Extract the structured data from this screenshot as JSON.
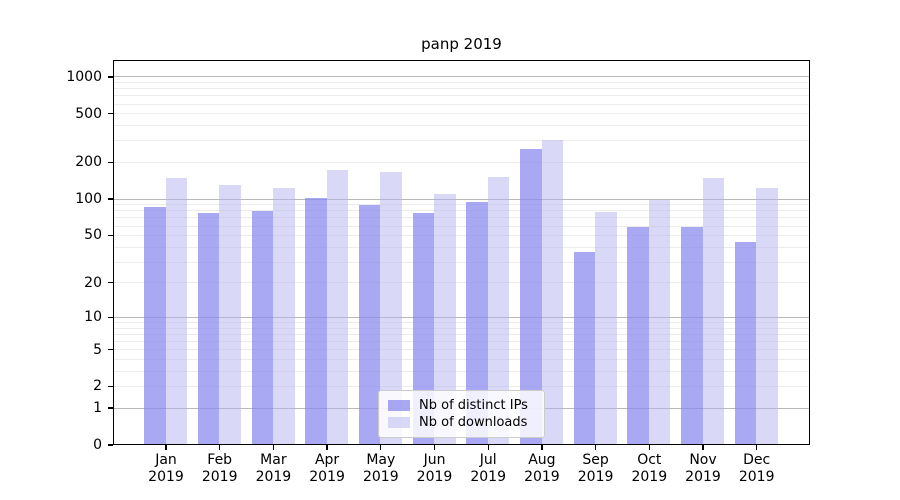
{
  "chart": {
    "title": "panp 2019"
  },
  "chart_data": {
    "type": "bar",
    "title": "panp 2019",
    "categories": [
      "Jan",
      "Feb",
      "Mar",
      "Apr",
      "May",
      "Jun",
      "Jul",
      "Aug",
      "Sep",
      "Oct",
      "Nov",
      "Dec"
    ],
    "x_tick_line2": "2019",
    "series": [
      {
        "name": "Nb of distinct IPs",
        "color": "#8686ee",
        "alpha": 0.72,
        "values": [
          84,
          75,
          79,
          101,
          87,
          75,
          92,
          255,
          36,
          58,
          58,
          43
        ]
      },
      {
        "name": "Nb of downloads",
        "color": "#b3b3f0",
        "alpha": 0.5,
        "values": [
          145,
          129,
          120,
          171,
          165,
          109,
          148,
          300,
          77,
          96,
          145,
          122
        ]
      }
    ],
    "y_axis": {
      "scale": "log10(1+x)",
      "ticks": [
        0,
        1,
        2,
        5,
        10,
        20,
        50,
        100,
        200,
        500,
        1000
      ],
      "major_gridlines": [
        1,
        10,
        100,
        1000
      ],
      "minor_gridline_decades": [
        1,
        10,
        100
      ],
      "ylim": [
        0,
        1380
      ]
    },
    "grid": true,
    "legend_position": "lower-center",
    "colors": {
      "major_grid": "#b9b9b9",
      "minor_grid": "#ececec",
      "axis": "#000000",
      "background": "#ffffff"
    }
  }
}
